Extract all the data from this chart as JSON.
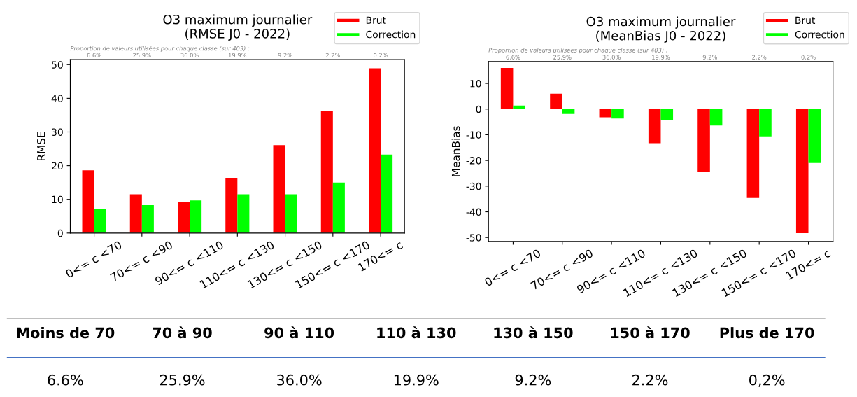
{
  "chart_data": [
    {
      "type": "bar",
      "title": "O3 maximum journalier\n(RMSE J0 - 2022)",
      "ylabel": "RMSE",
      "categories": [
        "0<= c <70",
        "70<= c <90",
        "90<= c <110",
        "110<= c <130",
        "130<= c <150",
        "150<= c <170",
        "170<= c"
      ],
      "series": [
        {
          "name": "Brut",
          "color": "#ff0000",
          "values": [
            18.6,
            11.5,
            9.3,
            16.4,
            26.1,
            36.2,
            48.9
          ]
        },
        {
          "name": "Correction",
          "color": "#00ff00",
          "values": [
            7.1,
            8.3,
            9.7,
            11.5,
            11.5,
            15.0,
            23.3
          ]
        }
      ],
      "ylim": [
        0,
        51.5
      ],
      "yticks": [
        0,
        10,
        20,
        30,
        40,
        50
      ],
      "legend": "top right",
      "annotations": [
        "Proportion de valeurs utilisées pour chaque classe (sur 403) :",
        "6.6%",
        "25.9%",
        "36.0%",
        "19.9%",
        "9.2%",
        "2.2%",
        "0.2%"
      ]
    },
    {
      "type": "bar",
      "title": "O3 maximum journalier\n(MeanBias J0 - 2022)",
      "ylabel": "MeanBias",
      "categories": [
        "0<= c <70",
        "70<= c <90",
        "90<= c <110",
        "110<= c <130",
        "130<= c <150",
        "150<= c <170",
        "170<= c"
      ],
      "series": [
        {
          "name": "Brut",
          "color": "#ff0000",
          "values": [
            16.0,
            6.0,
            -3.2,
            -13.3,
            -24.3,
            -34.6,
            -48.3
          ]
        },
        {
          "name": "Correction",
          "color": "#00ff00",
          "values": [
            1.4,
            -1.9,
            -3.7,
            -4.3,
            -6.4,
            -10.6,
            -21.0
          ]
        }
      ],
      "ylim": [
        -51.5,
        18.5
      ],
      "yticks": [
        -50,
        -40,
        -30,
        -20,
        -10,
        0,
        10
      ],
      "legend": "top right",
      "annotations": [
        "Proportion de valeurs utilisées pour chaque classe (sur 403) :",
        "6.6%",
        "25.9%",
        "36.0%",
        "19.9%",
        "9.2%",
        "2.2%",
        "0.2%"
      ]
    },
    {
      "type": "other",
      "categories": [
        "Moins de 70",
        "70 à 90",
        "90 à 110",
        "110 à 130",
        "130 à 150",
        "150 à 170",
        "Plus de 170"
      ],
      "annotations": [
        "6.6%",
        "25.9%",
        "36.0%",
        "19.9%",
        "9.2%",
        "2.2%",
        "0,2%"
      ]
    }
  ]
}
